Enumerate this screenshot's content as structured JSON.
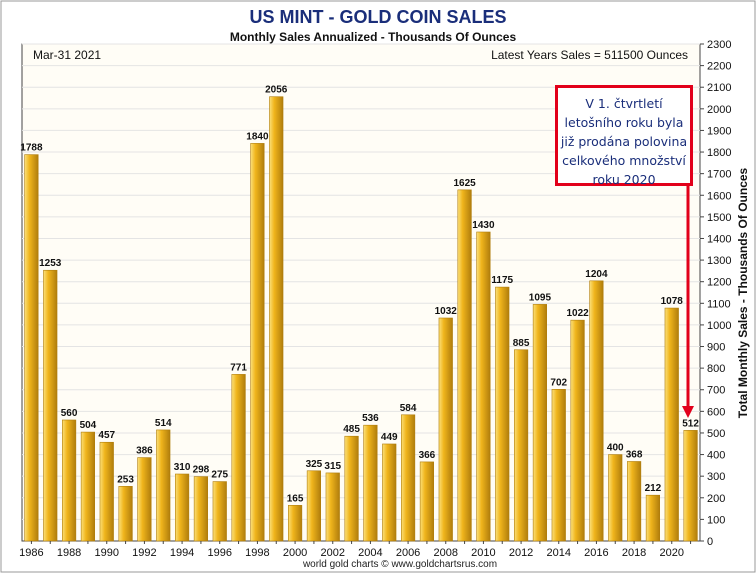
{
  "header": {
    "title": "US MINT - GOLD COIN SALES",
    "subtitle": "Monthly Sales Annualized - Thousands Of Ounces",
    "date": "Mar-31  2021",
    "latest": "Latest Years Sales = 511500 Ounces",
    "ylabel": "Total Monthly Sales - Thousands Of Ounces",
    "credit": "world gold charts © www.goldchartsrus.com"
  },
  "annotation": {
    "lines": [
      "V 1. čtvrtletí",
      "letošního roku byla",
      "již prodána polovina",
      "celkového množství",
      "roku 2020"
    ]
  },
  "colors": {
    "title": "#1a2e7a",
    "bar": "#f0b51c",
    "bar_light": "#fbe07a",
    "bar_dark": "#b07d0c",
    "annotation_border": "#e2001a",
    "plot_bg": "#fffdf6",
    "grid": "#e4e4e4"
  },
  "chart_data": {
    "type": "bar",
    "title": "US MINT - GOLD COIN SALES",
    "subtitle": "Monthly Sales Annualized - Thousands Of Ounces",
    "ylabel": "Total Monthly Sales - Thousands Of Ounces",
    "ylim": [
      0,
      2300
    ],
    "ytick_step": 100,
    "y_axis_side": "right",
    "grid": true,
    "categories": [
      "1986",
      "1987",
      "1988",
      "1989",
      "1990",
      "1991",
      "1992",
      "1993",
      "1994",
      "1995",
      "1996",
      "1997",
      "1998",
      "1999",
      "2000",
      "2001",
      "2002",
      "2003",
      "2004",
      "2005",
      "2006",
      "2007",
      "2008",
      "2009",
      "2010",
      "2011",
      "2012",
      "2013",
      "2014",
      "2015",
      "2016",
      "2017",
      "2018",
      "2019",
      "2020",
      "2021"
    ],
    "values": [
      1788,
      1253,
      560,
      504,
      457,
      253,
      386,
      514,
      310,
      298,
      275,
      771,
      1840,
      2056,
      165,
      325,
      315,
      485,
      536,
      449,
      584,
      366,
      1032,
      1625,
      1430,
      1175,
      885,
      1095,
      702,
      1022,
      1204,
      400,
      368,
      212,
      1078,
      512
    ],
    "data_labels": [
      "1788",
      "1253",
      "560",
      "504",
      "457",
      "253",
      "386",
      "514",
      "310",
      "298",
      "275",
      "771",
      "1840",
      "2056",
      "165",
      "325",
      "315",
      "485",
      "536",
      "449",
      "584",
      "366",
      "1032",
      "1625",
      "1430",
      "1175",
      "885",
      "1095",
      "702",
      "1022",
      "1204",
      "400",
      "368",
      "212",
      "1078",
      "512"
    ],
    "xtick_labels": [
      "1986",
      "1988",
      "1990",
      "1992",
      "1994",
      "1996",
      "1998",
      "2000",
      "2002",
      "2004",
      "2006",
      "2008",
      "2010",
      "2012",
      "2014",
      "2016",
      "2018",
      "2020"
    ],
    "ytick_labels": [
      "0",
      "100",
      "200",
      "300",
      "400",
      "500",
      "600",
      "700",
      "800",
      "900",
      "1000",
      "1100",
      "1200",
      "1300",
      "1400",
      "1500",
      "1600",
      "1700",
      "1800",
      "1900",
      "2000",
      "2100",
      "2200",
      "2300"
    ]
  }
}
